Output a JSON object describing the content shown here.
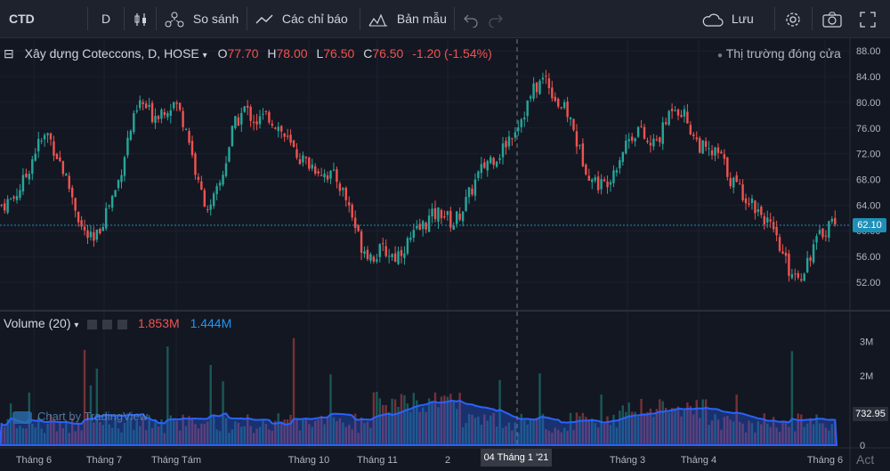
{
  "toolbar": {
    "symbol": "CTD",
    "interval": "D",
    "compare": "So sánh",
    "indicators": "Các chỉ báo",
    "templates": "Bản mẫu",
    "save": "Lưu"
  },
  "legend": {
    "title": "Xây dựng Coteccons, D, HOSE",
    "o_label": "O",
    "o_value": "77.70",
    "h_label": "H",
    "h_value": "78.00",
    "l_label": "L",
    "l_value": "76.50",
    "c_label": "C",
    "c_value": "76.50",
    "change": "-1.20 (-1.54%)",
    "market_status": "Thị trường đóng cửa"
  },
  "volume_legend": {
    "title": "Volume (20)",
    "value1": "1.853M",
    "value2": "1.444M"
  },
  "tags": {
    "last_price": "62.10",
    "last_volume": "732.95",
    "crosshair_date": "04 Tháng 1 '21"
  },
  "watermark": "Chart by TradingView",
  "corner_text": "Act",
  "colors": {
    "up": "#26a69a",
    "down": "#ef5350",
    "background": "#131722",
    "volume_ma": "#2962ff"
  },
  "chart_data": {
    "type": "candlestick",
    "price_axis": {
      "ticks": [
        "88.00",
        "84.00",
        "80.00",
        "76.00",
        "72.00",
        "68.00",
        "64.00",
        "60.00",
        "56.00",
        "52.00"
      ],
      "ylim": [
        49.5,
        89
      ]
    },
    "volume_axis": {
      "ticks": [
        "3M",
        "2M",
        "1M",
        "0"
      ],
      "ylim": [
        0,
        3.6
      ]
    },
    "x_labels": [
      "Tháng 6",
      "Tháng 7",
      "Tháng Tám",
      "Tháng 10",
      "Tháng 11",
      "2",
      "Tháng 3",
      "Tháng 4",
      "Tháng 6"
    ],
    "close_path": [
      64,
      65,
      68,
      73,
      75,
      71,
      66,
      60,
      58,
      63,
      67,
      75,
      80,
      78,
      79,
      80,
      76,
      67,
      63,
      68,
      76,
      79,
      77,
      78,
      76,
      73,
      71,
      70,
      69,
      68,
      64,
      58,
      56,
      57,
      56,
      58,
      60,
      62,
      63,
      61,
      64,
      68,
      71,
      72,
      75,
      78,
      82,
      84,
      80,
      78,
      72,
      68,
      67,
      70,
      74,
      76,
      73,
      75,
      80,
      78,
      74,
      72,
      72,
      68,
      66,
      64,
      62,
      58,
      54,
      53,
      57,
      60,
      62.1
    ]
  }
}
